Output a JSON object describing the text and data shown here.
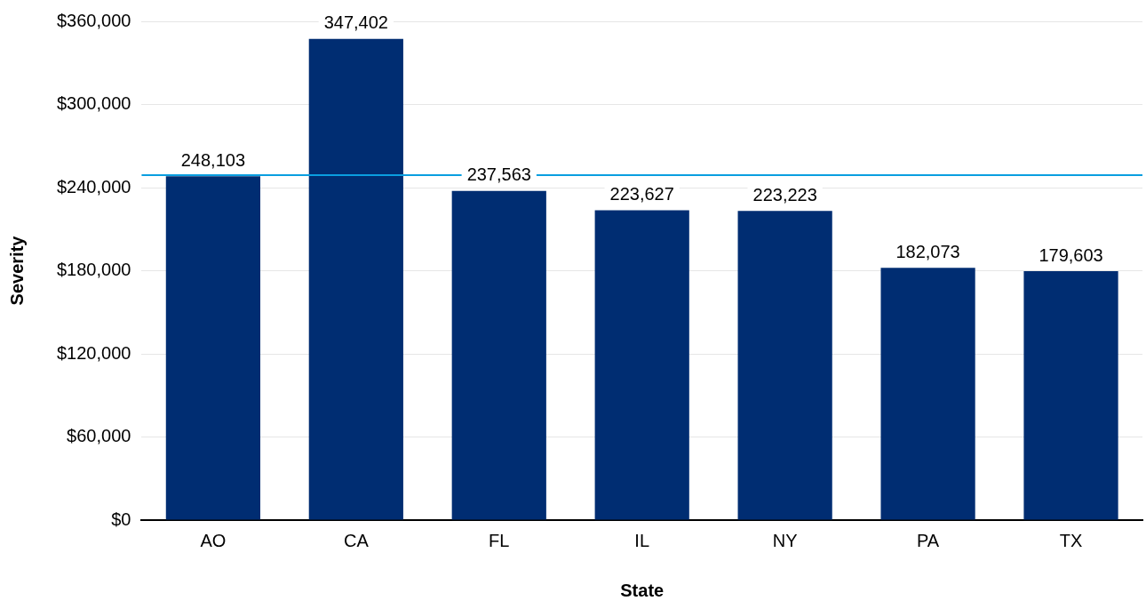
{
  "chart_data": {
    "type": "bar",
    "xlabel": "State",
    "ylabel": "Severity",
    "categories": [
      "AO",
      "CA",
      "FL",
      "IL",
      "NY",
      "PA",
      "TX"
    ],
    "values": [
      248103,
      347402,
      237563,
      223627,
      223223,
      182073,
      179603
    ],
    "value_labels": [
      "248,103",
      "347,402",
      "237,563",
      "223,627",
      "223,223",
      "182,073",
      "179,603"
    ],
    "color": "#002d72",
    "ylim": [
      0,
      360000
    ],
    "yticks": [
      {
        "value": 0,
        "label": "$0"
      },
      {
        "value": 60000,
        "label": "$60,000"
      },
      {
        "value": 120000,
        "label": "$120,000"
      },
      {
        "value": 180000,
        "label": "$180,000"
      },
      {
        "value": 240000,
        "label": "$240,000"
      },
      {
        "value": 300000,
        "label": "$300,000"
      },
      {
        "value": 360000,
        "label": "$360,000"
      }
    ],
    "ref_lines": [
      {
        "axis": "y",
        "value": 249000,
        "color": "#0a9ee0"
      }
    ],
    "grid": "y",
    "legend": false
  }
}
